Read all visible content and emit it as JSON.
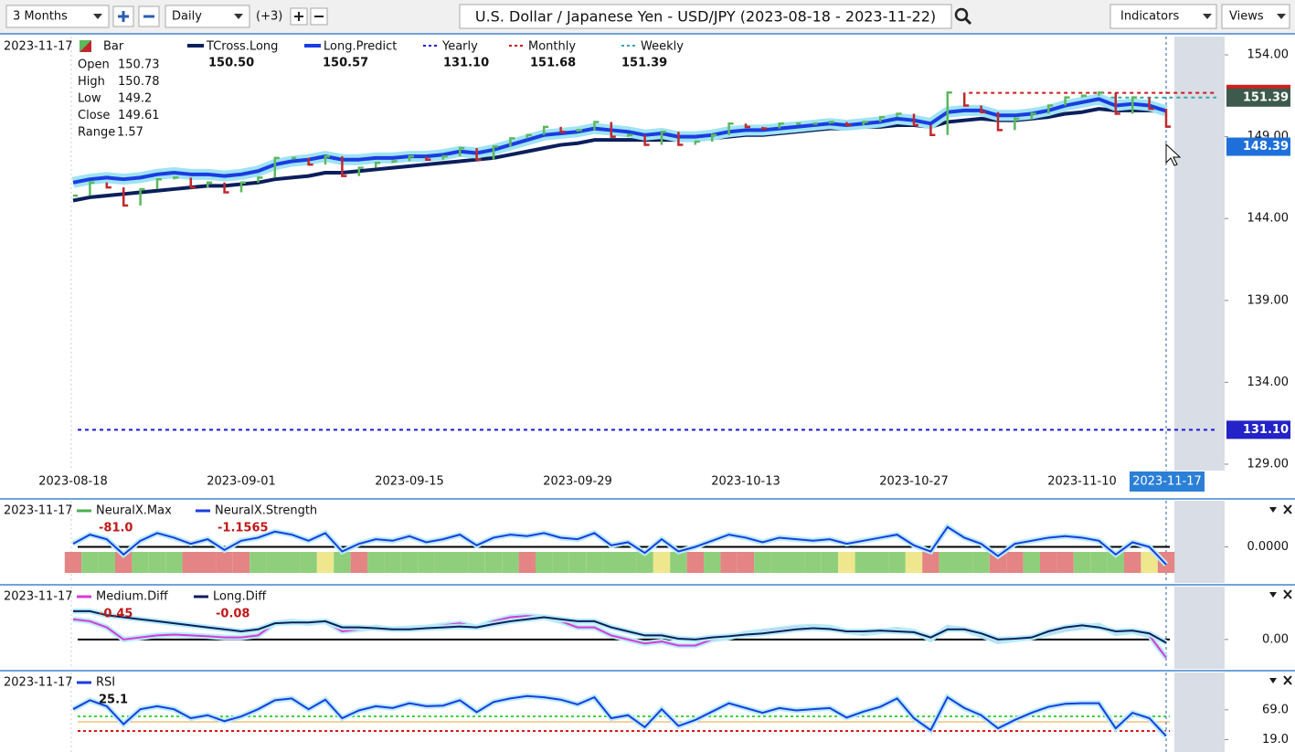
{
  "toolbar": {
    "range": "3 Months",
    "interval": "Daily",
    "extra": "(+3)",
    "title": "U.S. Dollar / Japanese Yen - USD/JPY (2023-08-18 - 2023-11-22)",
    "indicators": "Indicators",
    "views": "Views"
  },
  "chart_data": [
    {
      "type": "line",
      "date": "2023-11-17",
      "categories": [
        "2023-08-18",
        null,
        null,
        null,
        null,
        null,
        null,
        null,
        null,
        null,
        "2023-09-01",
        null,
        null,
        null,
        null,
        null,
        null,
        null,
        null,
        null,
        "2023-09-15",
        null,
        null,
        null,
        null,
        null,
        null,
        null,
        null,
        null,
        "2023-09-29",
        null,
        null,
        null,
        null,
        null,
        null,
        null,
        null,
        null,
        "2023-10-13",
        null,
        null,
        null,
        null,
        null,
        null,
        null,
        null,
        null,
        "2023-10-27",
        null,
        null,
        null,
        null,
        null,
        null,
        null,
        null,
        null,
        "2023-11-10",
        null,
        null,
        null,
        null,
        null
      ],
      "ohlc": [
        {
          "label": "Open",
          "value": 150.73
        },
        {
          "label": "High",
          "value": 150.78
        },
        {
          "label": "Low",
          "value": 149.2
        },
        {
          "label": "Close",
          "value": 149.61
        },
        {
          "label": "Range",
          "value": 1.57
        }
      ],
      "series": [
        {
          "name": "Bar",
          "up_color": "#5cb85c",
          "down_color": "#c0282d",
          "values": [
            145.4,
            146.2,
            145.9,
            144.8,
            145.8,
            146.4,
            146.5,
            145.9,
            146.2,
            145.6,
            146.2,
            146.5,
            147.7,
            147.7,
            147.3,
            147.8,
            146.6,
            147.1,
            147.4,
            147.5,
            147.8,
            147.6,
            147.8,
            148.3,
            147.6,
            148.4,
            148.9,
            149.1,
            149.6,
            149.3,
            149.4,
            149.9,
            149.0,
            149.1,
            148.5,
            149.3,
            148.5,
            148.7,
            149.1,
            149.8,
            149.6,
            149.5,
            149.8,
            149.8,
            149.8,
            149.9,
            149.7,
            149.9,
            150.2,
            150.4,
            149.7,
            149.1,
            151.7,
            150.9,
            150.5,
            149.4,
            150.1,
            150.4,
            150.9,
            151.4,
            151.5,
            151.7,
            150.4,
            151.4,
            150.7,
            149.61
          ]
        },
        {
          "name": "TCross.Long",
          "color": "#0b1f5c",
          "legend_value": "150.50",
          "values": [
            145.1,
            145.3,
            145.4,
            145.5,
            145.6,
            145.7,
            145.8,
            145.9,
            146.0,
            146.0,
            146.1,
            146.2,
            146.4,
            146.5,
            146.6,
            146.8,
            146.8,
            146.9,
            147.0,
            147.1,
            147.2,
            147.3,
            147.4,
            147.5,
            147.6,
            147.7,
            147.9,
            148.1,
            148.3,
            148.5,
            148.6,
            148.8,
            148.8,
            148.8,
            148.8,
            148.8,
            148.8,
            148.8,
            148.9,
            149.0,
            149.1,
            149.1,
            149.2,
            149.3,
            149.4,
            149.5,
            149.5,
            149.6,
            149.6,
            149.7,
            149.7,
            149.6,
            149.9,
            150.0,
            150.1,
            150.0,
            150.0,
            150.1,
            150.2,
            150.4,
            150.5,
            150.7,
            150.6,
            150.6,
            150.6,
            150.5
          ]
        },
        {
          "name": "Long.Predict",
          "color": "#1a3de0",
          "legend_value": "150.57",
          "values": [
            146.2,
            146.4,
            146.5,
            146.4,
            146.5,
            146.7,
            146.8,
            146.7,
            146.7,
            146.6,
            146.7,
            146.9,
            147.3,
            147.5,
            147.6,
            147.8,
            147.6,
            147.6,
            147.7,
            147.7,
            147.8,
            147.8,
            147.9,
            148.1,
            148.0,
            148.2,
            148.5,
            148.8,
            149.1,
            149.2,
            149.3,
            149.5,
            149.4,
            149.3,
            149.1,
            149.2,
            149.0,
            149.0,
            149.1,
            149.3,
            149.4,
            149.4,
            149.5,
            149.6,
            149.7,
            149.8,
            149.7,
            149.8,
            149.9,
            150.1,
            150.0,
            149.8,
            150.5,
            150.6,
            150.6,
            150.3,
            150.3,
            150.4,
            150.6,
            150.9,
            151.1,
            151.3,
            150.9,
            151.0,
            150.9,
            150.57
          ]
        }
      ],
      "levels": [
        {
          "name": "Yearly",
          "color": "#1a1ad8",
          "value": 131.1,
          "value_label": "131.10"
        },
        {
          "name": "Monthly",
          "color": "#d01818",
          "value": 151.68,
          "value_label": "151.68"
        },
        {
          "name": "Weekly",
          "color": "#3aa6a6",
          "value": 151.39,
          "value_label": "151.39"
        }
      ],
      "cursor": {
        "value": 148.39,
        "label": "148.39",
        "date": "2023-11-17"
      },
      "ylim": [
        129,
        154
      ],
      "yticks": [
        {
          "value": 154,
          "label": "154.00"
        },
        {
          "value": 149,
          "label": "149.00"
        },
        {
          "value": 144,
          "label": "144.00"
        },
        {
          "value": 139,
          "label": "139.00"
        },
        {
          "value": 134,
          "label": "134.00"
        },
        {
          "value": 129,
          "label": "129.00"
        }
      ]
    },
    {
      "type": "line",
      "date": "2023-11-17",
      "band_palette": {
        "g": "#8fcf7c",
        "r": "#e48484",
        "y": "#efe78e"
      },
      "series": [
        {
          "name": "NeuralX.Max",
          "color": "#4caf50",
          "legend_value": "-81.0",
          "band": [
            "r",
            "g",
            "g",
            "r",
            "g",
            "g",
            "g",
            "r",
            "r",
            "r",
            "r",
            "g",
            "g",
            "g",
            "g",
            "y",
            "g",
            "r",
            "g",
            "g",
            "g",
            "g",
            "g",
            "g",
            "g",
            "g",
            "g",
            "r",
            "g",
            "g",
            "g",
            "g",
            "g",
            "g",
            "g",
            "y",
            "g",
            "r",
            "g",
            "r",
            "r",
            "g",
            "g",
            "g",
            "g",
            "g",
            "y",
            "g",
            "g",
            "g",
            "y",
            "r",
            "g",
            "g",
            "g",
            "r",
            "r",
            "g",
            "r",
            "r",
            "g",
            "g",
            "g",
            "r",
            "y",
            "r"
          ]
        },
        {
          "name": "NeuralX.Strength",
          "color": "#1a3de0",
          "legend_value": "-1.1565",
          "values": [
            0.2,
            0.8,
            0.5,
            -0.5,
            0.4,
            0.9,
            0.6,
            0.2,
            0.5,
            -0.2,
            0.4,
            0.6,
            1.0,
            0.8,
            0.4,
            0.9,
            -0.3,
            0.2,
            0.5,
            0.4,
            0.7,
            0.3,
            0.5,
            0.8,
            0.1,
            0.6,
            0.8,
            0.7,
            0.9,
            0.6,
            0.5,
            0.9,
            0.1,
            0.3,
            -0.4,
            0.5,
            -0.3,
            0.0,
            0.4,
            0.8,
            0.6,
            0.3,
            0.6,
            0.5,
            0.4,
            0.5,
            0.2,
            0.4,
            0.6,
            0.8,
            0.1,
            -0.3,
            1.3,
            0.6,
            0.2,
            -0.6,
            0.2,
            0.4,
            0.6,
            0.7,
            0.6,
            0.4,
            -0.5,
            0.3,
            0.0,
            -1.1565
          ]
        }
      ],
      "ylim": [
        -2,
        2
      ],
      "yticks": [
        {
          "value": 0,
          "label": "0.0000"
        }
      ]
    },
    {
      "type": "line",
      "date": "2023-11-17",
      "series": [
        {
          "name": "Medium.Diff",
          "color": "#d83ad8",
          "legend_value": "-0.45",
          "values": [
            0.5,
            0.45,
            0.3,
            0.0,
            0.05,
            0.1,
            0.12,
            0.1,
            0.08,
            0.05,
            0.05,
            0.1,
            0.4,
            0.45,
            0.4,
            0.45,
            0.2,
            0.25,
            0.3,
            0.25,
            0.28,
            0.3,
            0.35,
            0.4,
            0.3,
            0.45,
            0.55,
            0.58,
            0.55,
            0.45,
            0.3,
            0.3,
            0.1,
            0.0,
            -0.1,
            -0.05,
            -0.15,
            -0.15,
            0.0,
            0.05,
            0.15,
            0.2,
            0.25,
            0.3,
            0.32,
            0.3,
            0.2,
            0.15,
            0.2,
            0.25,
            0.2,
            0.0,
            0.3,
            0.25,
            0.1,
            -0.05,
            0.0,
            0.05,
            0.15,
            0.25,
            0.3,
            0.35,
            0.15,
            0.2,
            0.1,
            -0.45
          ]
        },
        {
          "name": "Long.Diff",
          "color": "#0b1f5c",
          "legend_value": "-0.08",
          "values": [
            0.7,
            0.7,
            0.6,
            0.55,
            0.5,
            0.45,
            0.4,
            0.35,
            0.3,
            0.25,
            0.2,
            0.25,
            0.4,
            0.42,
            0.42,
            0.45,
            0.3,
            0.3,
            0.28,
            0.25,
            0.25,
            0.28,
            0.3,
            0.32,
            0.3,
            0.38,
            0.45,
            0.5,
            0.55,
            0.5,
            0.45,
            0.45,
            0.3,
            0.2,
            0.1,
            0.1,
            0.02,
            0.0,
            0.05,
            0.08,
            0.12,
            0.15,
            0.2,
            0.25,
            0.28,
            0.26,
            0.2,
            0.2,
            0.22,
            0.2,
            0.18,
            0.05,
            0.25,
            0.25,
            0.15,
            0.0,
            0.02,
            0.05,
            0.2,
            0.3,
            0.35,
            0.3,
            0.2,
            0.22,
            0.15,
            -0.08
          ]
        }
      ],
      "ylim": [
        -0.5,
        0.9
      ],
      "yticks": [
        {
          "value": 0,
          "label": "0.00"
        }
      ]
    },
    {
      "type": "line",
      "date": "2023-11-17",
      "series": [
        {
          "name": "RSI",
          "color": "#1a3de0",
          "legend_value": "25.1",
          "values": [
            70,
            85,
            75,
            45,
            70,
            75,
            70,
            55,
            60,
            50,
            58,
            70,
            85,
            88,
            70,
            86,
            55,
            68,
            75,
            72,
            80,
            75,
            76,
            85,
            65,
            82,
            88,
            92,
            90,
            86,
            78,
            90,
            55,
            60,
            40,
            70,
            42,
            52,
            66,
            80,
            72,
            64,
            72,
            68,
            70,
            72,
            56,
            66,
            74,
            88,
            55,
            35,
            90,
            72,
            60,
            38,
            52,
            64,
            74,
            79,
            80,
            80,
            38,
            64,
            55,
            25.1
          ]
        }
      ],
      "ylim": [
        0,
        110
      ],
      "yticks": [
        {
          "value": 69,
          "label": "69.0"
        },
        {
          "value": 19,
          "label": "19.0"
        }
      ]
    }
  ]
}
